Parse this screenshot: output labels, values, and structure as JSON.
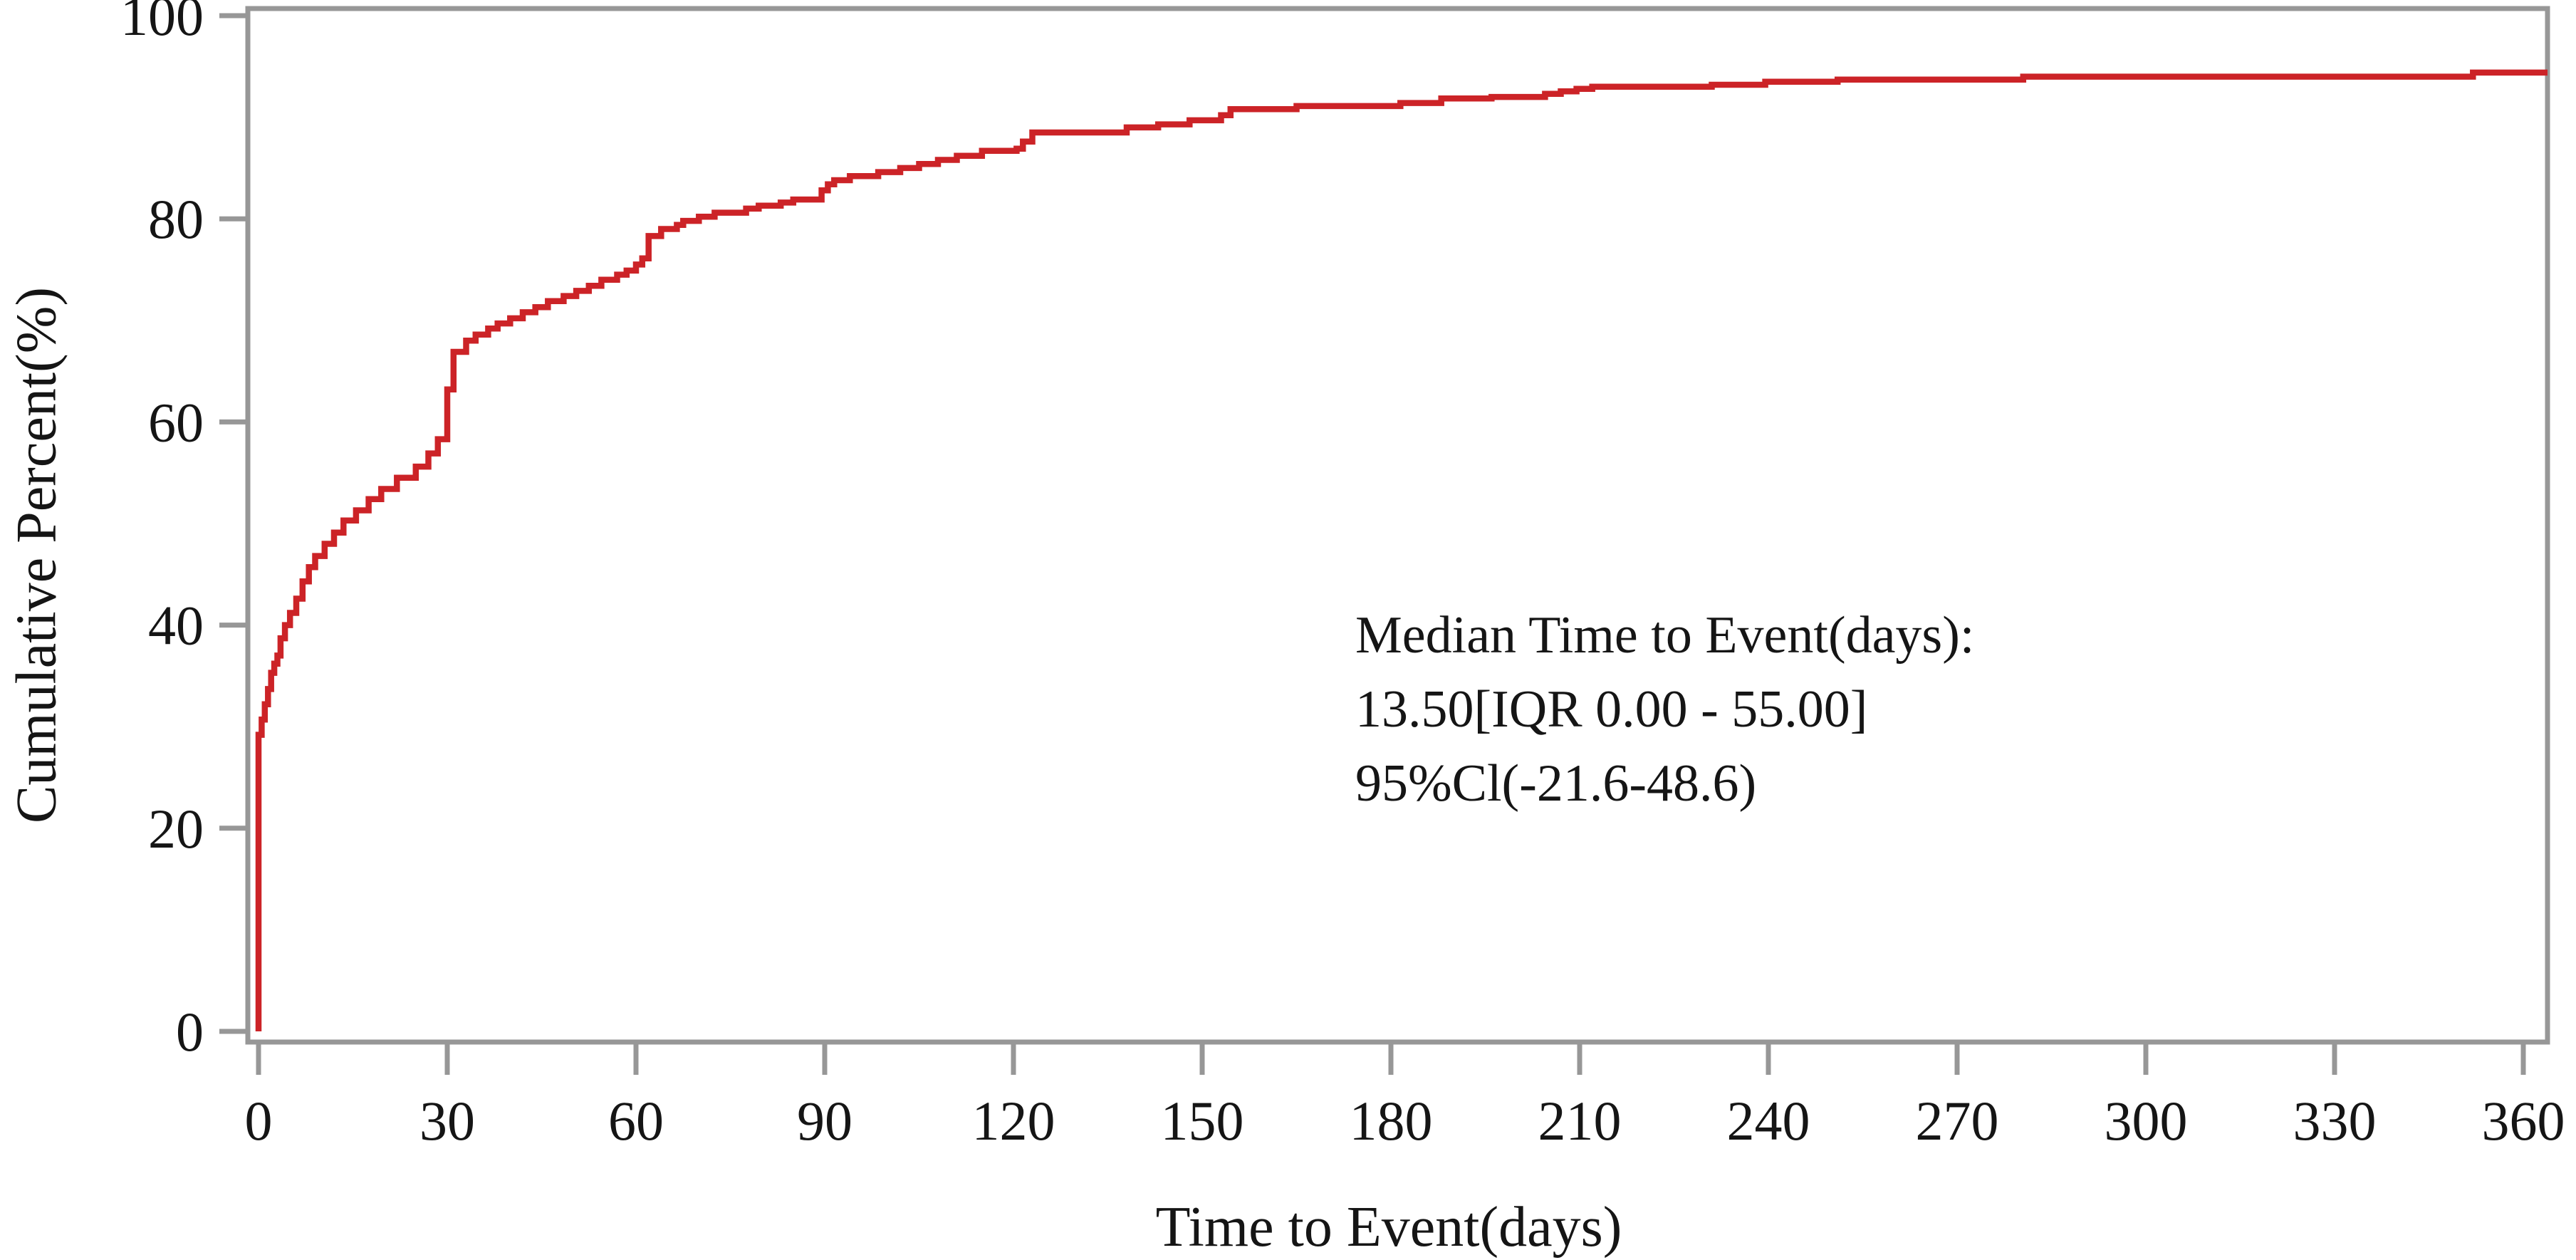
{
  "chart_data": {
    "type": "line",
    "subtype": "step-post-cumulative",
    "title": "",
    "xlabel": "Time to Event(days)",
    "ylabel": "Cumulative Percent(%)",
    "xlim": [
      0,
      360
    ],
    "ylim": [
      0,
      100
    ],
    "x_ticks": [
      0,
      30,
      60,
      90,
      120,
      150,
      180,
      210,
      240,
      270,
      300,
      330,
      360
    ],
    "y_ticks": [
      0,
      20,
      40,
      60,
      80,
      100
    ],
    "grid": false,
    "legend": "none",
    "frame": "full-box",
    "colors": {
      "line": "#cc2327",
      "axis": "#979797",
      "text": "#151515",
      "background": "#ffffff"
    },
    "annotation": {
      "lines": [
        "Median Time to Event(days):",
        "13.50[IQR 0.00 - 55.00]",
        "95%Cl(-21.6-48.6)"
      ]
    },
    "series": [
      {
        "name": "cumulative-percent",
        "step": "post",
        "end_x": 364,
        "points": [
          [
            0,
            0
          ],
          [
            0,
            29.2
          ],
          [
            0.5,
            30.7
          ],
          [
            1,
            32.2
          ],
          [
            1.5,
            33.7
          ],
          [
            2,
            35.3
          ],
          [
            2.5,
            36.2
          ],
          [
            3,
            37.0
          ],
          [
            3.5,
            38.7
          ],
          [
            4.2,
            40.0
          ],
          [
            5,
            41.2
          ],
          [
            6,
            42.6
          ],
          [
            7,
            44.3
          ],
          [
            8,
            45.7
          ],
          [
            9,
            46.8
          ],
          [
            10.5,
            48.0
          ],
          [
            12,
            49.1
          ],
          [
            13.5,
            50.3
          ],
          [
            15.5,
            51.3
          ],
          [
            17.5,
            52.4
          ],
          [
            19.5,
            53.4
          ],
          [
            22,
            54.5
          ],
          [
            25,
            55.6
          ],
          [
            27,
            56.9
          ],
          [
            28.5,
            58.3
          ],
          [
            30,
            63.2
          ],
          [
            31,
            66.9
          ],
          [
            33,
            68.0
          ],
          [
            34.5,
            68.6
          ],
          [
            36.5,
            69.2
          ],
          [
            38,
            69.7
          ],
          [
            40,
            70.2
          ],
          [
            42,
            70.8
          ],
          [
            44,
            71.3
          ],
          [
            46,
            71.9
          ],
          [
            48.5,
            72.4
          ],
          [
            50.5,
            72.9
          ],
          [
            52.5,
            73.4
          ],
          [
            54.5,
            74.0
          ],
          [
            57,
            74.5
          ],
          [
            58.5,
            74.9
          ],
          [
            60,
            75.5
          ],
          [
            61,
            76.1
          ],
          [
            62,
            78.3
          ],
          [
            64,
            79.0
          ],
          [
            66.5,
            79.4
          ],
          [
            67.5,
            79.8
          ],
          [
            70,
            80.2
          ],
          [
            72.5,
            80.6
          ],
          [
            77.5,
            81.0
          ],
          [
            79.5,
            81.3
          ],
          [
            83,
            81.6
          ],
          [
            85,
            81.9
          ],
          [
            89.5,
            82.8
          ],
          [
            90.5,
            83.4
          ],
          [
            91.5,
            83.8
          ],
          [
            94,
            84.2
          ],
          [
            98.5,
            84.6
          ],
          [
            102,
            85.0
          ],
          [
            105,
            85.4
          ],
          [
            108,
            85.8
          ],
          [
            111,
            86.2
          ],
          [
            115,
            86.7
          ],
          [
            120.5,
            86.9
          ],
          [
            121.5,
            87.6
          ],
          [
            123,
            88.5
          ],
          [
            138,
            89.0
          ],
          [
            143,
            89.3
          ],
          [
            148,
            89.7
          ],
          [
            153,
            90.2
          ],
          [
            154.5,
            90.8
          ],
          [
            165,
            91.1
          ],
          [
            181.5,
            91.4
          ],
          [
            188,
            91.85
          ],
          [
            196,
            92.0
          ],
          [
            204.5,
            92.3
          ],
          [
            207,
            92.55
          ],
          [
            209.5,
            92.8
          ],
          [
            212,
            93.0
          ],
          [
            231,
            93.2
          ],
          [
            239.5,
            93.5
          ],
          [
            251,
            93.7
          ],
          [
            280.5,
            94.0
          ],
          [
            352,
            94.4
          ]
        ]
      }
    ]
  }
}
